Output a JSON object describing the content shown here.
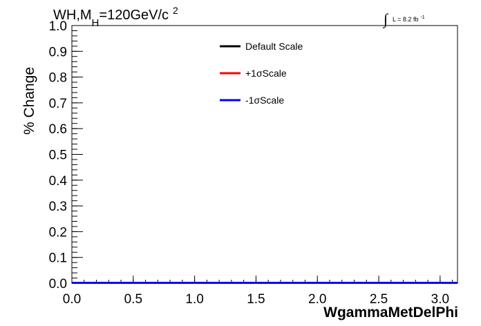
{
  "title": {
    "main": "WH,M",
    "subscript": "H",
    "rest": "=120GeV/c",
    "superscript": "2"
  },
  "lumi": {
    "integral_symbol": "∫",
    "text": "L = 8.2 fb",
    "superscript": "-1"
  },
  "chart_data": {
    "type": "line",
    "xlabel": "WgammaMetDelPhi",
    "ylabel": "% Change",
    "xlim": [
      0.0,
      3.14159
    ],
    "ylim": [
      0.0,
      1.0
    ],
    "x_ticks": [
      "0.0",
      "0.5",
      "1.0",
      "1.5",
      "2.0",
      "2.5",
      "3.0"
    ],
    "y_ticks": [
      "0.0",
      "0.1",
      "0.2",
      "0.3",
      "0.4",
      "0.5",
      "0.6",
      "0.7",
      "0.8",
      "0.9",
      "1.0"
    ],
    "legend_position": "top-center",
    "grid": false,
    "series": [
      {
        "name": "Default Scale",
        "color": "#000000",
        "x": [
          0.0,
          3.14159
        ],
        "y": [
          0.0,
          0.0
        ]
      },
      {
        "name": "+1σScale",
        "color": "#ff0000",
        "x": [
          0.0,
          3.14159
        ],
        "y": [
          0.0,
          0.0
        ]
      },
      {
        "name": "-1σScale",
        "color": "#0000ff",
        "x": [
          0.0,
          3.14159
        ],
        "y": [
          0.0,
          0.0
        ]
      }
    ]
  }
}
